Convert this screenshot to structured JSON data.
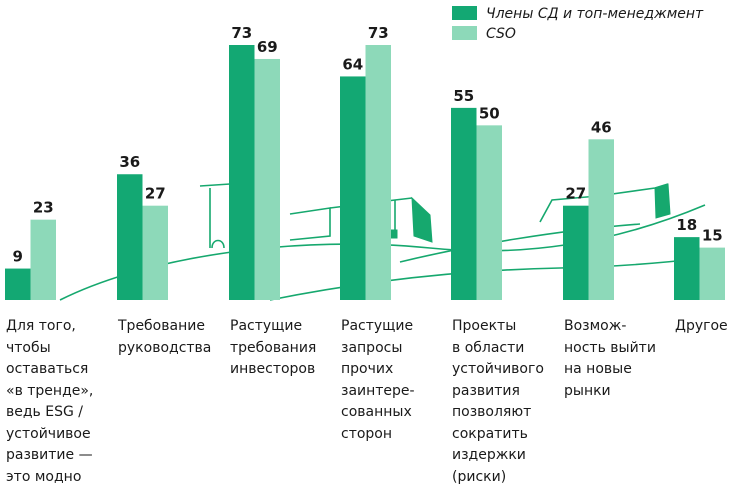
{
  "chart_data": {
    "type": "bar",
    "categories": [
      "Для того,\nчтобы\nоставаться\n«в тренде»,\nведь ESG /\nустойчивое\nразвитие —\nэто модно",
      "Требование\nруководства",
      "Растущие\nтребования\nинвесторов",
      "Растущие\nзапросы\nпрочих\nзаинтере-\nсованных\nсторон",
      "Проекты\nв области\nустойчивого\nразвития\nпозволяют\nсократить\nиздержки\n(риски)",
      "Возмож-\nность выйти\nна новые\nрынки",
      "Другое"
    ],
    "series": [
      {
        "name": "Члены СД и топ-менеджмент",
        "values": [
          9,
          36,
          73,
          64,
          55,
          27,
          18
        ],
        "color": "#13a873"
      },
      {
        "name": "CSO",
        "values": [
          23,
          27,
          69,
          73,
          50,
          46,
          15
        ],
        "color": "#8dd9b9"
      }
    ],
    "title": "",
    "xlabel": "",
    "ylabel": "",
    "ylim": [
      0,
      73
    ],
    "grid": false,
    "legend_position": "top-right"
  }
}
